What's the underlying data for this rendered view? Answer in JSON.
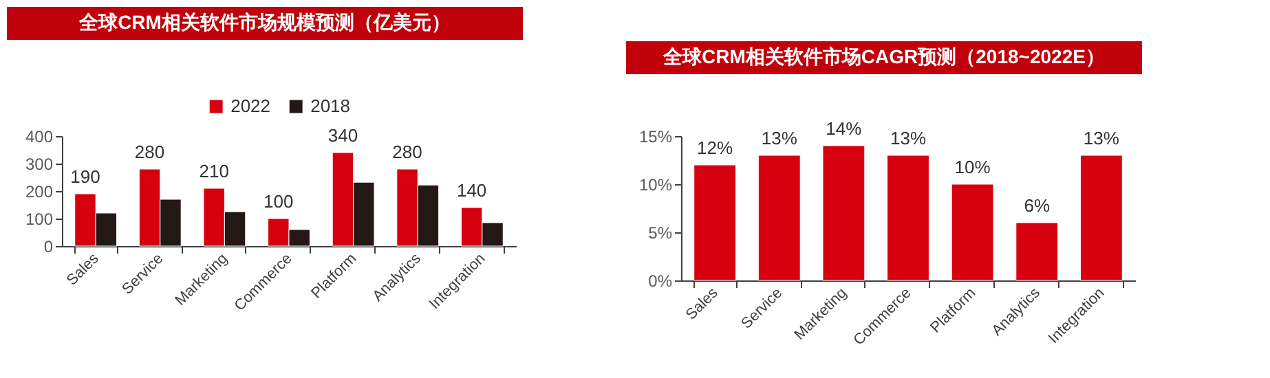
{
  "chart_data": [
    {
      "type": "bar",
      "title": "全球CRM相关软件市场规模预测（亿美元）",
      "categories": [
        "Sales",
        "Service",
        "Marketing",
        "Commerce",
        "Platform",
        "Analytics",
        "Integration"
      ],
      "series": [
        {
          "name": "2022",
          "color": "#d7000f",
          "values": [
            190,
            280,
            210,
            100,
            340,
            280,
            140
          ],
          "value_labels": [
            "190",
            "280",
            "210",
            "100",
            "340",
            "280",
            "140"
          ]
        },
        {
          "name": "2018",
          "color": "#231815",
          "values": [
            120,
            170,
            125,
            60,
            232,
            222,
            85
          ]
        }
      ],
      "ylim": [
        0,
        400
      ],
      "yticks": [
        0,
        100,
        200,
        300,
        400
      ],
      "grid": false,
      "legend": "top"
    },
    {
      "type": "bar",
      "title": "全球CRM相关软件市场CAGR预测（2018~2022E）",
      "categories": [
        "Sales",
        "Service",
        "Marketing",
        "Commerce",
        "Platform",
        "Analytics",
        "Integration"
      ],
      "series": [
        {
          "color": "#d7000f",
          "values": [
            12,
            13,
            14,
            13,
            10,
            6,
            13
          ],
          "value_labels": [
            "12%",
            "13%",
            "14%",
            "13%",
            "10%",
            "6%",
            "13%"
          ]
        }
      ],
      "ylim": [
        0,
        15
      ],
      "yticks": [
        {
          "value": 0,
          "label": "0%"
        },
        {
          "value": 5,
          "label": "5%"
        },
        {
          "value": 10,
          "label": "10%"
        },
        {
          "value": 15,
          "label": "15%"
        }
      ],
      "grid": false,
      "legend": false
    }
  ]
}
